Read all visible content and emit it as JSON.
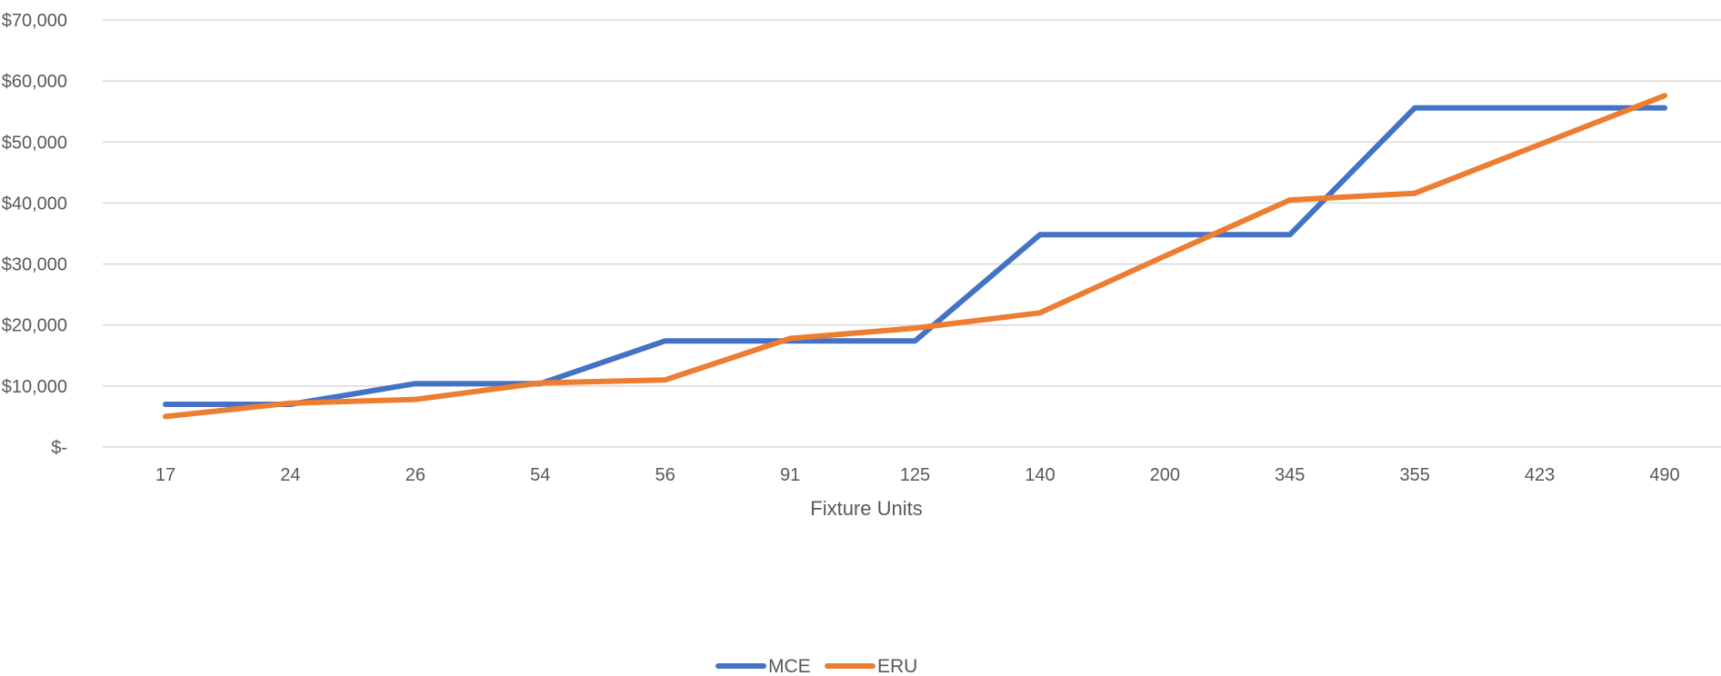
{
  "chart_data": {
    "type": "line",
    "title": "",
    "xlabel": "Fixture Units",
    "ylabel": "",
    "categories": [
      "17",
      "24",
      "26",
      "54",
      "56",
      "91",
      "125",
      "140",
      "200",
      "345",
      "355",
      "423",
      "490"
    ],
    "series": [
      {
        "name": "MCE",
        "color": "#4472C4",
        "values": [
          7000,
          7000,
          10400,
          10400,
          17400,
          17400,
          17400,
          34800,
          34800,
          34800,
          55600,
          55600,
          55600
        ]
      },
      {
        "name": "ERU",
        "color": "#ED7D31",
        "values": [
          5000,
          7200,
          7800,
          10500,
          11000,
          17800,
          19500,
          22000,
          31300,
          40500,
          41600,
          49600,
          57600
        ]
      }
    ],
    "ylim": [
      0,
      70000
    ],
    "y_ticks": [
      0,
      10000,
      20000,
      30000,
      40000,
      50000,
      60000,
      70000
    ],
    "y_tick_labels": [
      "$-",
      "$10,000",
      "$20,000",
      "$30,000",
      "$40,000",
      "$50,000",
      "$60,000",
      "$70,000"
    ],
    "grid": true,
    "legend_position": "bottom"
  }
}
